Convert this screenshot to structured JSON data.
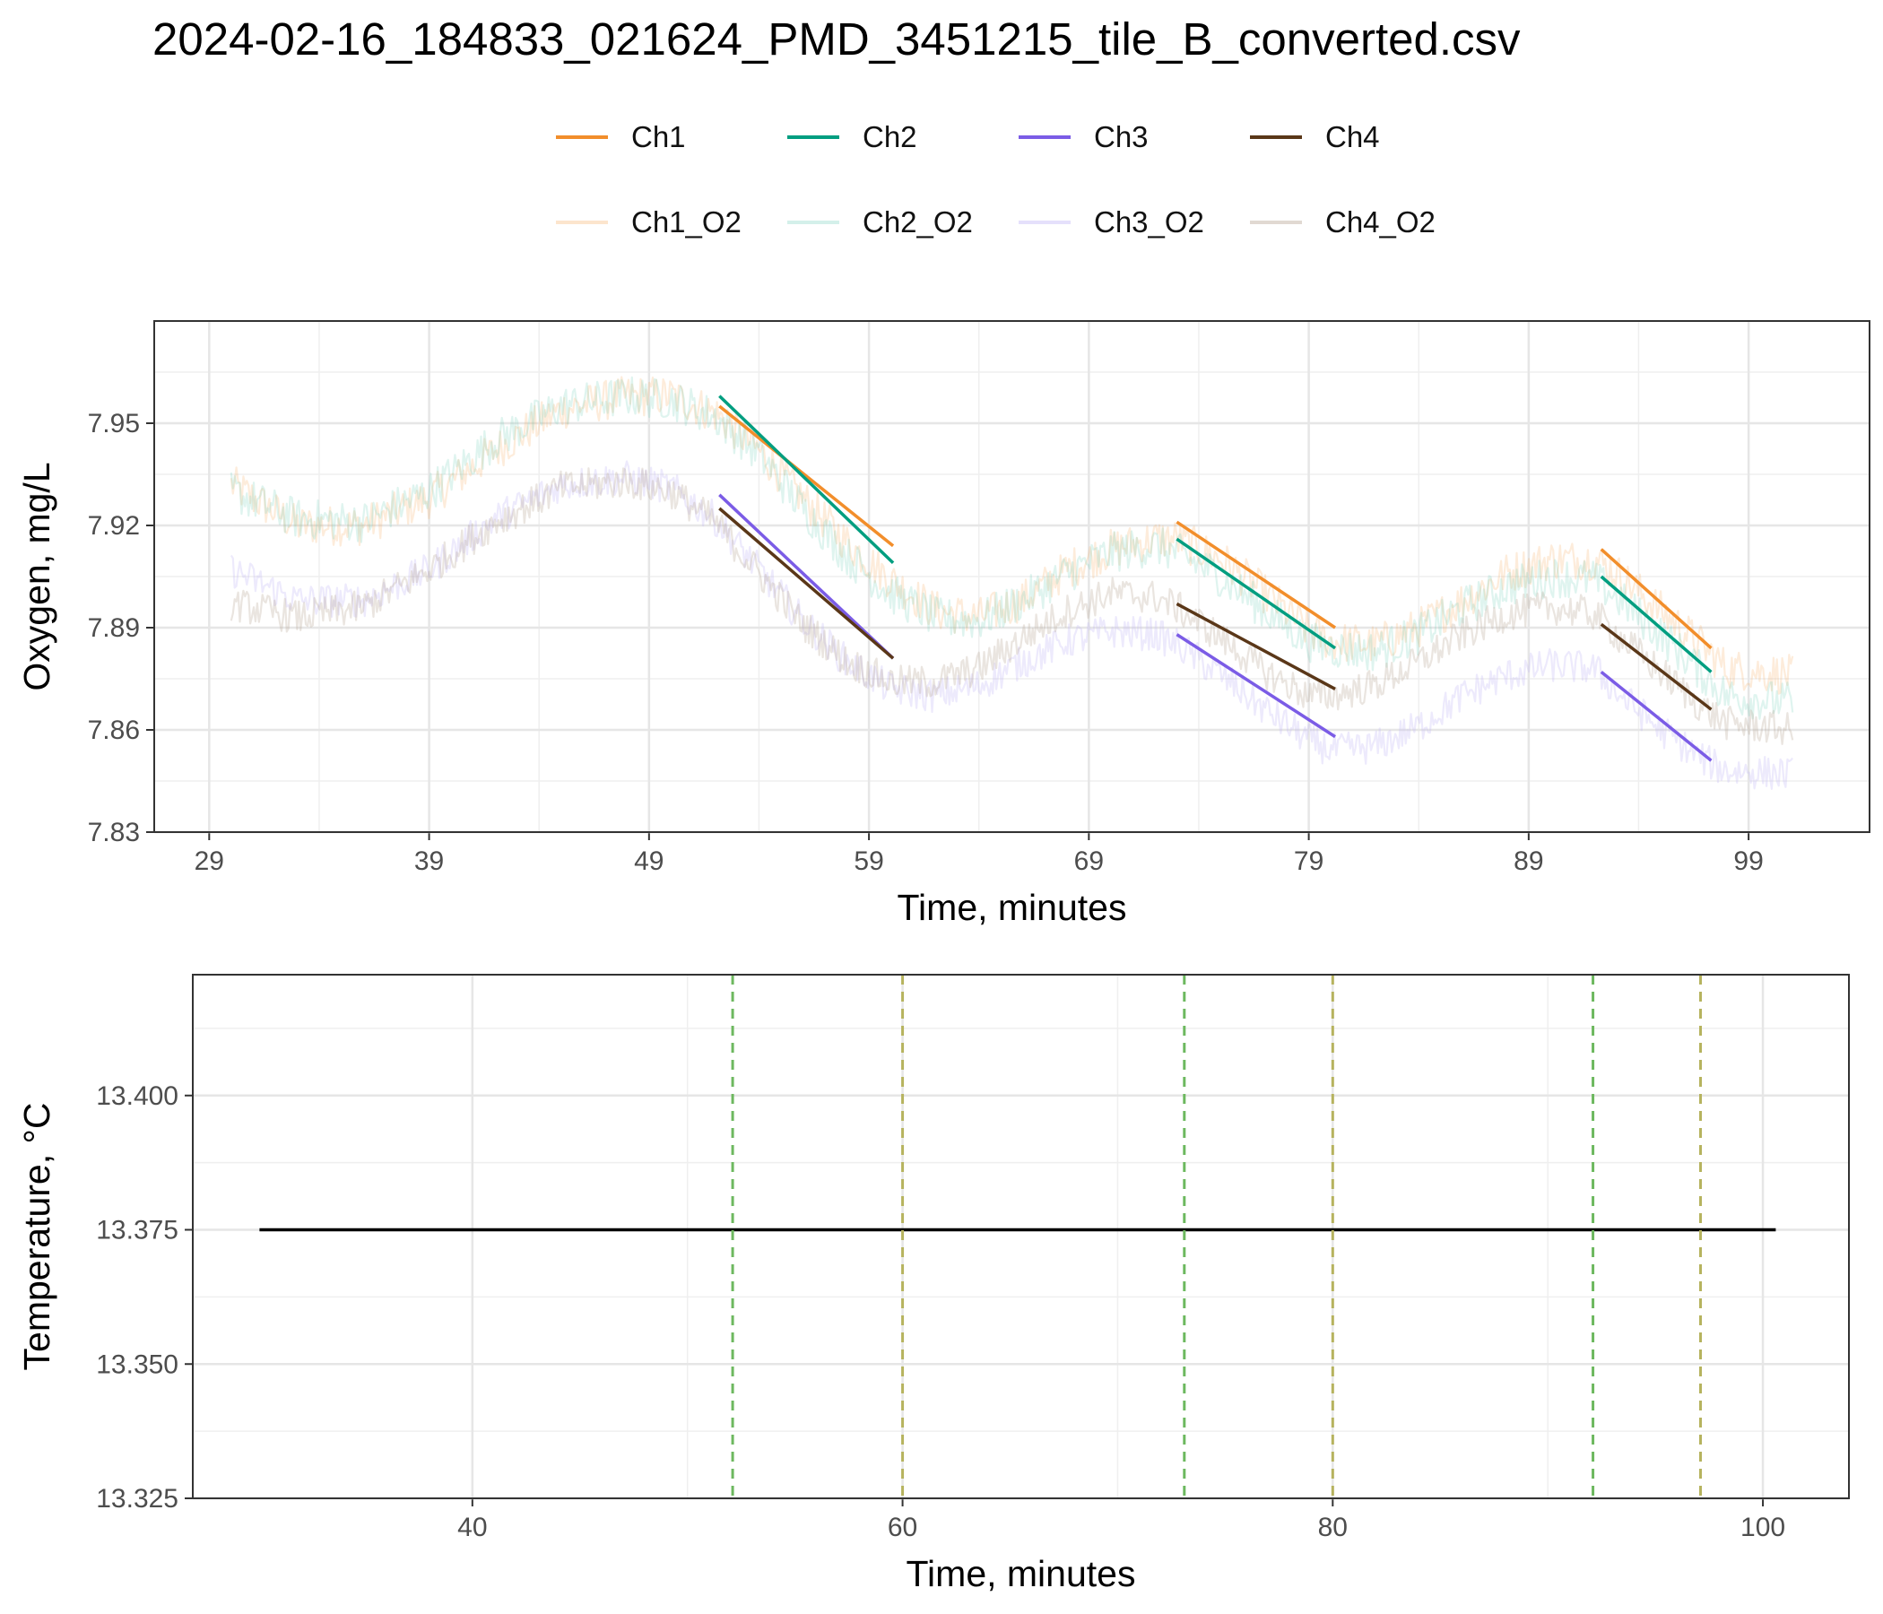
{
  "chart_data": [
    {
      "type": "line",
      "title": "2024-02-16_184833_021624_PMD_3451215_tile_B_converted.csv",
      "xlabel": "Time, minutes",
      "ylabel": "Oxygen, mg/L",
      "xlim": [
        26.5,
        104.5
      ],
      "ylim": [
        7.83,
        7.98
      ],
      "xticks": [
        29,
        39,
        49,
        59,
        69,
        79,
        89,
        99
      ],
      "xtick_labels": [
        "29",
        "39",
        "49",
        "59",
        "69",
        "79",
        "89",
        "99"
      ],
      "yticks": [
        7.83,
        7.86,
        7.89,
        7.92,
        7.95
      ],
      "ytick_labels": [
        "7.83",
        "7.86",
        "7.89",
        "7.92",
        "7.95"
      ],
      "grid": true,
      "legend_position": "top",
      "series": [
        {
          "name": "Ch1_O2",
          "color": "#F5A95A",
          "opacity": 0.22,
          "noise": 0.006,
          "x": [
            30,
            33,
            36,
            39,
            42,
            45,
            48,
            50,
            52,
            54,
            56,
            58,
            60,
            62,
            64,
            66,
            68,
            70,
            72,
            73,
            75,
            77,
            79,
            80,
            82,
            84,
            86,
            88,
            90,
            92,
            93,
            95,
            97,
            98,
            101
          ],
          "y": [
            7.932,
            7.92,
            7.92,
            7.928,
            7.942,
            7.954,
            7.958,
            7.958,
            7.953,
            7.942,
            7.928,
            7.915,
            7.904,
            7.895,
            7.893,
            7.898,
            7.907,
            7.913,
            7.916,
            7.916,
            7.91,
            7.9,
            7.889,
            7.886,
            7.885,
            7.89,
            7.898,
            7.906,
            7.91,
            7.91,
            7.906,
            7.895,
            7.884,
            7.878,
            7.876
          ]
        },
        {
          "name": "Ch2_O2",
          "color": "#6FCDB8",
          "opacity": 0.22,
          "noise": 0.006,
          "x": [
            30,
            33,
            36,
            39,
            42,
            45,
            48,
            50,
            52,
            54,
            56,
            58,
            60,
            62,
            64,
            66,
            68,
            70,
            72,
            73,
            75,
            77,
            79,
            80,
            82,
            84,
            86,
            88,
            90,
            92,
            93,
            95,
            97,
            98,
            101
          ],
          "y": [
            7.93,
            7.922,
            7.921,
            7.93,
            7.945,
            7.955,
            7.958,
            7.957,
            7.952,
            7.941,
            7.925,
            7.911,
            7.9,
            7.893,
            7.892,
            7.898,
            7.906,
            7.912,
            7.914,
            7.912,
            7.905,
            7.895,
            7.886,
            7.884,
            7.883,
            7.888,
            7.896,
            7.902,
            7.905,
            7.904,
            7.899,
            7.888,
            7.876,
            7.87,
            7.868
          ]
        },
        {
          "name": "Ch3_O2",
          "color": "#BDB2F5",
          "opacity": 0.28,
          "noise": 0.005,
          "x": [
            30,
            33,
            36,
            39,
            42,
            45,
            48,
            50,
            52,
            54,
            56,
            58,
            60,
            62,
            64,
            66,
            68,
            70,
            72,
            73,
            75,
            77,
            79,
            80,
            82,
            84,
            86,
            88,
            90,
            92,
            93,
            95,
            97,
            98,
            101
          ],
          "y": [
            7.907,
            7.898,
            7.898,
            7.907,
            7.922,
            7.932,
            7.934,
            7.931,
            7.922,
            7.907,
            7.892,
            7.88,
            7.872,
            7.87,
            7.873,
            7.88,
            7.886,
            7.889,
            7.888,
            7.885,
            7.876,
            7.866,
            7.857,
            7.854,
            7.855,
            7.861,
            7.87,
            7.876,
            7.879,
            7.878,
            7.871,
            7.86,
            7.851,
            7.848,
            7.847
          ]
        },
        {
          "name": "Ch4_O2",
          "color": "#B3A08E",
          "opacity": 0.28,
          "noise": 0.005,
          "x": [
            30,
            33,
            36,
            39,
            42,
            45,
            48,
            50,
            52,
            54,
            56,
            58,
            60,
            62,
            64,
            66,
            68,
            70,
            72,
            73,
            75,
            77,
            79,
            80,
            82,
            84,
            86,
            88,
            90,
            92,
            93,
            95,
            97,
            98,
            101
          ],
          "y": [
            7.897,
            7.893,
            7.896,
            7.907,
            7.921,
            7.931,
            7.933,
            7.93,
            7.921,
            7.906,
            7.891,
            7.88,
            7.874,
            7.874,
            7.878,
            7.887,
            7.895,
            7.9,
            7.899,
            7.896,
            7.887,
            7.877,
            7.87,
            7.87,
            7.873,
            7.88,
            7.888,
            7.894,
            7.896,
            7.894,
            7.888,
            7.877,
            7.866,
            7.862,
            7.86
          ]
        },
        {
          "name": "Ch1",
          "color": "#F28E2B",
          "opacity": 1,
          "width": 3.5,
          "segments": [
            {
              "x": [
                52.2,
                60.1
              ],
              "y": [
                7.955,
                7.914
              ]
            },
            {
              "x": [
                73.0,
                80.2
              ],
              "y": [
                7.921,
                7.89
              ]
            },
            {
              "x": [
                92.3,
                97.3
              ],
              "y": [
                7.913,
                7.884
              ]
            }
          ]
        },
        {
          "name": "Ch2",
          "color": "#009E80",
          "opacity": 1,
          "width": 3.5,
          "segments": [
            {
              "x": [
                52.2,
                60.1
              ],
              "y": [
                7.958,
                7.909
              ]
            },
            {
              "x": [
                73.0,
                80.2
              ],
              "y": [
                7.916,
                7.884
              ]
            },
            {
              "x": [
                92.3,
                97.3
              ],
              "y": [
                7.905,
                7.877
              ]
            }
          ]
        },
        {
          "name": "Ch3",
          "color": "#7B5CE6",
          "opacity": 1,
          "width": 3.5,
          "segments": [
            {
              "x": [
                52.2,
                60.1
              ],
              "y": [
                7.929,
                7.881
              ]
            },
            {
              "x": [
                73.0,
                80.2
              ],
              "y": [
                7.888,
                7.858
              ]
            },
            {
              "x": [
                92.3,
                97.3
              ],
              "y": [
                7.877,
                7.851
              ]
            }
          ]
        },
        {
          "name": "Ch4",
          "color": "#5A3718",
          "opacity": 1,
          "width": 3.5,
          "segments": [
            {
              "x": [
                52.2,
                60.1
              ],
              "y": [
                7.925,
                7.881
              ]
            },
            {
              "x": [
                73.0,
                80.2
              ],
              "y": [
                7.897,
                7.872
              ]
            },
            {
              "x": [
                92.3,
                97.3
              ],
              "y": [
                7.891,
                7.866
              ]
            }
          ]
        }
      ]
    },
    {
      "type": "line",
      "xlabel": "Time, minutes",
      "ylabel": "Temperature, °C",
      "xlim": [
        27,
        104
      ],
      "ylim": [
        13.325,
        13.4225
      ],
      "xticks": [
        40,
        60,
        80,
        100
      ],
      "xtick_labels": [
        "40",
        "60",
        "80",
        "100"
      ],
      "yticks": [
        13.325,
        13.35,
        13.375,
        13.4
      ],
      "ytick_labels": [
        "13.325",
        "13.350",
        "13.375",
        "13.400"
      ],
      "grid": true,
      "series": [
        {
          "color": "#000000",
          "x": [
            30.1,
            100.6
          ],
          "y": [
            13.375,
            13.375
          ]
        }
      ],
      "vlines": [
        {
          "x": 52.1,
          "color": "#6DB85F"
        },
        {
          "x": 60.0,
          "color": "#B6B35E"
        },
        {
          "x": 73.1,
          "color": "#6DB85F"
        },
        {
          "x": 80.0,
          "color": "#B6B35E"
        },
        {
          "x": 92.1,
          "color": "#6DB85F"
        },
        {
          "x": 97.1,
          "color": "#B6B35E"
        }
      ]
    }
  ],
  "legend": [
    {
      "label": "Ch1",
      "color": "#F28E2B",
      "opacity": 1
    },
    {
      "label": "Ch2",
      "color": "#009E80",
      "opacity": 1
    },
    {
      "label": "Ch3",
      "color": "#7B5CE6",
      "opacity": 1
    },
    {
      "label": "Ch4",
      "color": "#5A3718",
      "opacity": 1
    },
    {
      "label": "Ch1_O2",
      "color": "#F5A95A",
      "opacity": 0.3
    },
    {
      "label": "Ch2_O2",
      "color": "#6FCDB8",
      "opacity": 0.3
    },
    {
      "label": "Ch3_O2",
      "color": "#BDB2F5",
      "opacity": 0.4
    },
    {
      "label": "Ch4_O2",
      "color": "#B3A08E",
      "opacity": 0.4
    }
  ]
}
